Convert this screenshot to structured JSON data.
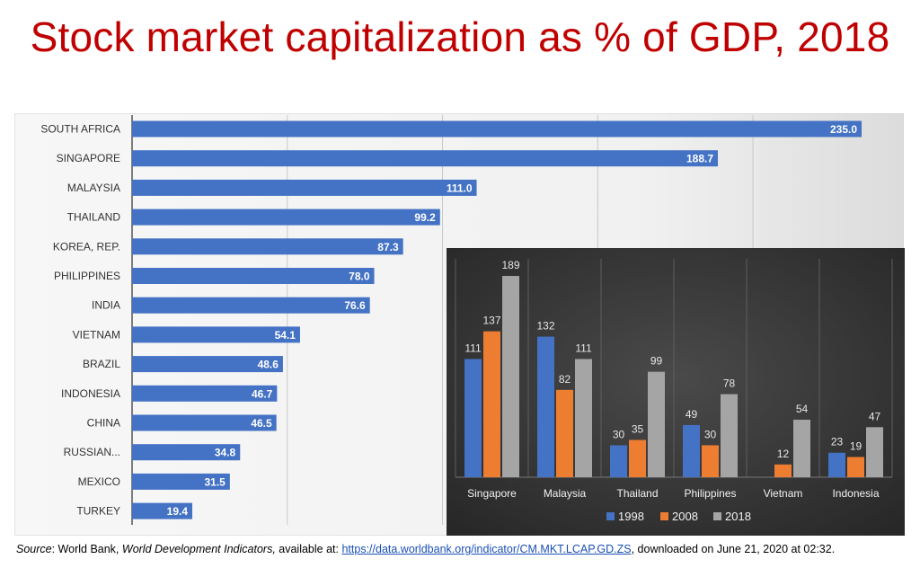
{
  "title": "Stock market capitalization as % of GDP, 2018",
  "colors": {
    "title": "#c00000",
    "bar_main": "#4472c4",
    "s1998": "#4472c4",
    "s2008": "#ed7d31",
    "s2018": "#a5a5a5"
  },
  "chart_data": [
    {
      "type": "bar",
      "orientation": "horizontal",
      "title": "Stock market capitalization as % of GDP, 2018",
      "categories": [
        "SOUTH AFRICA",
        "SINGAPORE",
        "MALAYSIA",
        "THAILAND",
        "KOREA, REP.",
        "PHILIPPINES",
        "INDIA",
        "VIETNAM",
        "BRAZIL",
        "INDONESIA",
        "CHINA",
        "RUSSIAN...",
        "MEXICO",
        "TURKEY"
      ],
      "values": [
        235.0,
        188.7,
        111.0,
        99.2,
        87.3,
        78.0,
        76.6,
        54.1,
        48.6,
        46.7,
        46.5,
        34.8,
        31.5,
        19.4
      ],
      "value_labels": [
        "235.0",
        "188.7",
        "111.0",
        "99.2",
        "87.3",
        "78.0",
        "76.6",
        "54.1",
        "48.6",
        "46.7",
        "46.5",
        "34.8",
        "31.5",
        "19.4"
      ],
      "xlim": [
        0,
        250
      ],
      "grid": true
    },
    {
      "type": "bar",
      "categories": [
        "Singapore",
        "Malaysia",
        "Thailand",
        "Philippines",
        "Vietnam",
        "Indonesia"
      ],
      "series": [
        {
          "name": "1998",
          "values": [
            111,
            132,
            30,
            49,
            null,
            23
          ],
          "labels": [
            "111",
            "132",
            "30",
            "49",
            "",
            "23"
          ]
        },
        {
          "name": "2008",
          "values": [
            137,
            82,
            35,
            30,
            12,
            19
          ],
          "labels": [
            "137",
            "82",
            "35",
            "30",
            "12",
            "19"
          ]
        },
        {
          "name": "2018",
          "values": [
            189,
            111,
            99,
            78,
            54,
            47
          ],
          "labels": [
            "189",
            "111",
            "99",
            "78",
            "54",
            "47"
          ]
        }
      ],
      "ylim": [
        0,
        200
      ],
      "legend": "bottom",
      "grid": true
    }
  ],
  "source": {
    "label": "Source",
    "text1": ": World Bank, ",
    "publication": "World Development Indicators,",
    "text2": " available at: ",
    "url": "https://data.worldbank.org/indicator/CM.MKT.LCAP.GD.ZS",
    "text3": ", downloaded on June 21, 2020 at 02:32."
  }
}
